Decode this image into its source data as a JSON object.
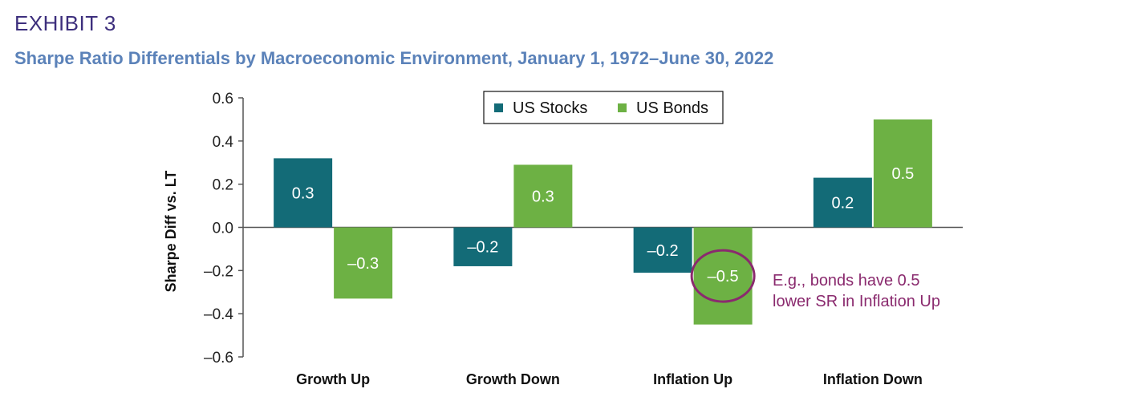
{
  "header": {
    "exhibit": "EXHIBIT 3",
    "subtitle": "Sharpe Ratio Differentials by Macroeconomic Environment, January 1, 1972–June 30, 2022"
  },
  "colors": {
    "us_stocks": "#136b77",
    "us_bonds": "#6db144",
    "annotation": "#8a2a6e",
    "header": "#3d2f7d",
    "subtitle": "#5b82b9"
  },
  "chart_data": {
    "type": "bar",
    "title": "",
    "xlabel": "",
    "ylabel": "Sharpe Diff vs. LT",
    "ylim": [
      -0.6,
      0.6
    ],
    "yticks": [
      0.6,
      0.4,
      0.2,
      0.0,
      -0.2,
      -0.4,
      -0.6
    ],
    "ytick_labels": [
      "0.6",
      "0.4",
      "0.2",
      "0.0",
      "–0.2",
      "–0.4",
      "–0.6"
    ],
    "categories": [
      "Growth Up",
      "Growth Down",
      "Inflation Up",
      "Inflation Down"
    ],
    "series": [
      {
        "name": "US Stocks",
        "values": [
          0.32,
          -0.18,
          -0.21,
          0.23
        ],
        "labels": [
          "0.3",
          "–0.2",
          "–0.2",
          "0.2"
        ]
      },
      {
        "name": "US Bonds",
        "values": [
          -0.33,
          0.29,
          -0.45,
          0.5
        ],
        "labels": [
          "–0.3",
          "0.3",
          "–0.5",
          "0.5"
        ]
      }
    ],
    "legend": "top-center",
    "grid": false,
    "annotation": {
      "lines": [
        "E.g., bonds have 0.5",
        "lower SR in Inflation Up"
      ],
      "target": {
        "category": "Inflation Up",
        "series": "US Bonds"
      }
    }
  }
}
